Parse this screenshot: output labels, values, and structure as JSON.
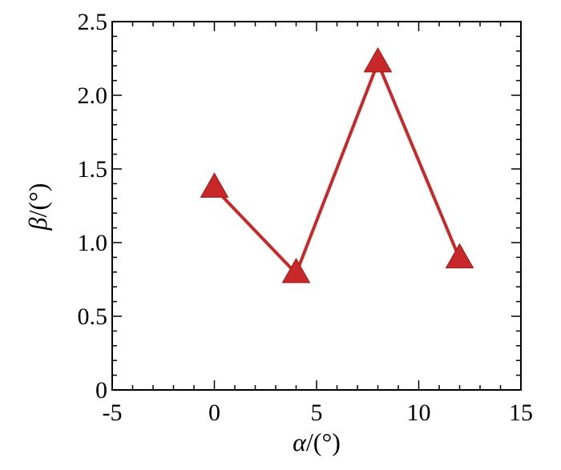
{
  "chart_data": {
    "type": "line",
    "xlabel_symbol": "α",
    "xlabel_unit": "/(°)",
    "ylabel_symbol": "β",
    "ylabel_unit": "/(°)",
    "xlim": [
      -5,
      15
    ],
    "ylim": [
      0,
      2.5
    ],
    "x_ticks": [
      -5,
      0,
      5,
      10,
      15
    ],
    "x_tick_labels": [
      "-5",
      "0",
      "5",
      "10",
      "15"
    ],
    "y_ticks": [
      0,
      0.5,
      1.0,
      1.5,
      2.0,
      2.5
    ],
    "y_tick_labels": [
      "0",
      "0.5",
      "1.0",
      "1.5",
      "2.0",
      "2.5"
    ],
    "x_minor_step": 1,
    "y_minor_step": 0.1,
    "grid": false,
    "series": [
      {
        "x": [
          0,
          4,
          8,
          12
        ],
        "y": [
          1.37,
          0.79,
          2.22,
          0.89
        ],
        "color": "#c8282a",
        "marker": "triangle"
      }
    ]
  }
}
